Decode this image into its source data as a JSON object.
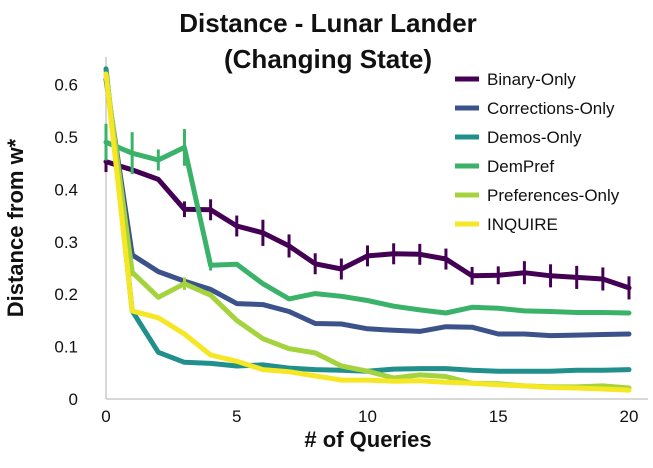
{
  "chart_data": {
    "type": "line",
    "title": [
      "Distance - Lunar Lander",
      "(Changing State)"
    ],
    "xlabel": "# of Queries",
    "ylabel": "Distance from w*",
    "xlim": [
      0,
      20
    ],
    "ylim": [
      0,
      0.6
    ],
    "xticks": [
      0,
      5,
      10,
      15,
      20
    ],
    "yticks": [
      0,
      0.1,
      0.2,
      0.3,
      0.4,
      0.5,
      0.6
    ],
    "ytick_labels": [
      "0",
      "0.1",
      "0.2",
      "0.3",
      "0.4",
      "0.5",
      "0.6"
    ],
    "grid": false,
    "legend_position": "top-right",
    "x": [
      0,
      1,
      2,
      3,
      4,
      5,
      6,
      7,
      8,
      9,
      10,
      11,
      12,
      13,
      14,
      15,
      16,
      17,
      18,
      19,
      20
    ],
    "series": [
      {
        "name": "Binary-Only",
        "color": "#440154",
        "values": [
          0.453,
          0.437,
          0.419,
          0.362,
          0.361,
          0.33,
          0.317,
          0.292,
          0.258,
          0.248,
          0.273,
          0.277,
          0.276,
          0.267,
          0.235,
          0.236,
          0.241,
          0.235,
          0.232,
          0.229,
          0.212
        ],
        "errors": [
          0.02,
          0.0,
          0.0,
          0.015,
          0.02,
          0.02,
          0.025,
          0.022,
          0.02,
          0.02,
          0.02,
          0.02,
          0.02,
          0.02,
          0.017,
          0.017,
          0.022,
          0.022,
          0.022,
          0.022,
          0.022
        ]
      },
      {
        "name": "Corrections-Only",
        "color": "#3b528b",
        "values": [
          0.61,
          0.275,
          0.243,
          0.225,
          0.209,
          0.182,
          0.18,
          0.167,
          0.144,
          0.143,
          0.134,
          0.131,
          0.129,
          0.138,
          0.137,
          0.124,
          0.124,
          0.121,
          0.122,
          0.123,
          0.124
        ],
        "errors": []
      },
      {
        "name": "Demos-Only",
        "color": "#21908d",
        "values": [
          0.63,
          0.168,
          0.089,
          0.07,
          0.068,
          0.063,
          0.065,
          0.059,
          0.056,
          0.055,
          0.053,
          0.057,
          0.058,
          0.058,
          0.055,
          0.053,
          0.053,
          0.053,
          0.055,
          0.055,
          0.056
        ],
        "errors": []
      },
      {
        "name": "DemPref",
        "color": "#3bb26a",
        "values": [
          0.49,
          0.469,
          0.456,
          0.48,
          0.255,
          0.257,
          0.22,
          0.191,
          0.201,
          0.196,
          0.188,
          0.177,
          0.17,
          0.164,
          0.175,
          0.173,
          0.168,
          0.167,
          0.165,
          0.165,
          0.164
        ],
        "errors": [
          0.035,
          0.04,
          0.02,
          0.035,
          0.01,
          0.0,
          0.0,
          0.0,
          0.0,
          0.0,
          0.0,
          0.0,
          0.0,
          0.0,
          0.0,
          0.0,
          0.0,
          0.0,
          0.0,
          0.0,
          0.0
        ]
      },
      {
        "name": "Preferences-Only",
        "color": "#a4d33d",
        "values": [
          0.62,
          0.242,
          0.194,
          0.22,
          0.198,
          0.15,
          0.115,
          0.096,
          0.088,
          0.063,
          0.053,
          0.04,
          0.046,
          0.043,
          0.03,
          0.029,
          0.025,
          0.023,
          0.023,
          0.025,
          0.021
        ],
        "errors": [
          0.0,
          0.008,
          0.0,
          0.012,
          0.0,
          0.0,
          0.0,
          0.0,
          0.0,
          0.0,
          0.0,
          0.0,
          0.0,
          0.0,
          0.0,
          0.0,
          0.0,
          0.0,
          0.0,
          0.0,
          0.0
        ]
      },
      {
        "name": "INQUIRE",
        "color": "#f5e723",
        "values": [
          0.62,
          0.168,
          0.155,
          0.124,
          0.084,
          0.072,
          0.056,
          0.052,
          0.044,
          0.036,
          0.036,
          0.034,
          0.035,
          0.032,
          0.03,
          0.027,
          0.025,
          0.022,
          0.021,
          0.019,
          0.017
        ],
        "errors": []
      }
    ]
  }
}
